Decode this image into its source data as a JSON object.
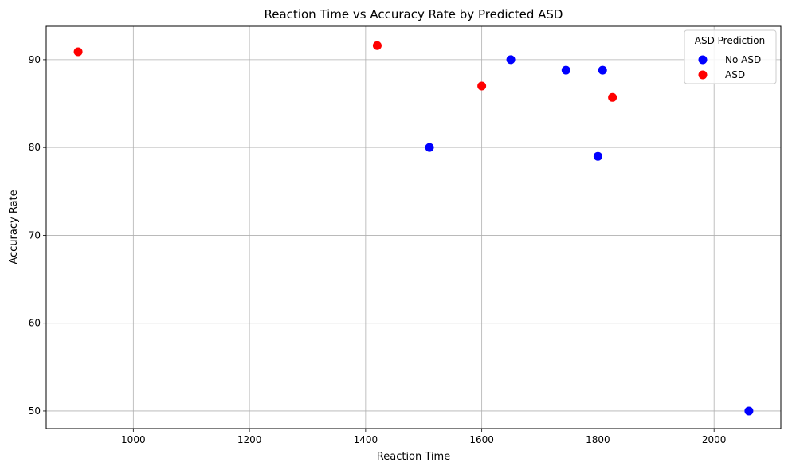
{
  "chart_data": {
    "type": "scatter",
    "title": "Reaction Time vs Accuracy Rate by Predicted ASD",
    "xlabel": "Reaction Time",
    "ylabel": "Accuracy Rate",
    "xlim": [
      850,
      2115
    ],
    "ylim": [
      48,
      93.8
    ],
    "xticks": [
      1000,
      1200,
      1400,
      1600,
      1800,
      2000
    ],
    "yticks": [
      50,
      60,
      70,
      80,
      90
    ],
    "grid": true,
    "legend": {
      "title": "ASD Prediction",
      "placement": "top-right"
    },
    "series": [
      {
        "name": "No ASD",
        "color": "#0000ff",
        "points": [
          {
            "x": 1510,
            "y": 80
          },
          {
            "x": 1650,
            "y": 90
          },
          {
            "x": 1745,
            "y": 88.8
          },
          {
            "x": 1800,
            "y": 79
          },
          {
            "x": 1808,
            "y": 88.8
          },
          {
            "x": 2060,
            "y": 50
          }
        ]
      },
      {
        "name": "ASD",
        "color": "#ff0000",
        "points": [
          {
            "x": 905,
            "y": 90.9
          },
          {
            "x": 1420,
            "y": 91.6
          },
          {
            "x": 1600,
            "y": 87
          },
          {
            "x": 1825,
            "y": 85.7
          }
        ]
      }
    ]
  }
}
